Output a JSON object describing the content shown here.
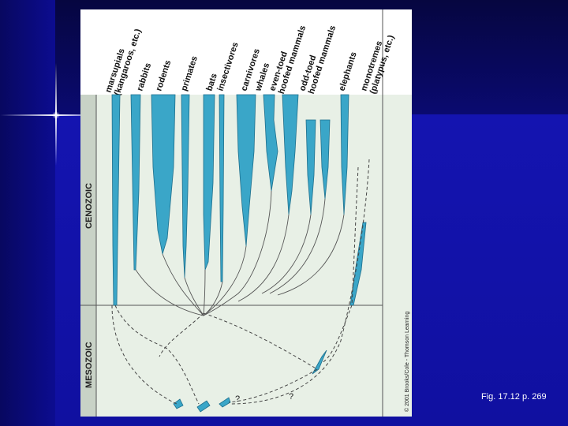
{
  "slide": {
    "caption": "Fig. 17.12 p. 269",
    "colors": {
      "branch": "#3aa6c8",
      "era_bg": "#e8f0e6",
      "slide_bg": "#1010a8"
    }
  },
  "figure": {
    "labels": [
      {
        "id": "marsupials",
        "lines": [
          "marsupials",
          "(kangaroos, etc.)"
        ]
      },
      {
        "id": "rabbits",
        "lines": [
          "rabbits"
        ]
      },
      {
        "id": "rodents",
        "lines": [
          "rodents"
        ]
      },
      {
        "id": "primates",
        "lines": [
          "primates"
        ]
      },
      {
        "id": "bats",
        "lines": [
          "bats"
        ]
      },
      {
        "id": "insectivores",
        "lines": [
          "insectivores"
        ]
      },
      {
        "id": "carnivores",
        "lines": [
          "carnivores"
        ]
      },
      {
        "id": "whales",
        "lines": [
          "whales"
        ]
      },
      {
        "id": "even-toed",
        "lines": [
          "even-toed",
          "hoofed mammals"
        ]
      },
      {
        "id": "odd-toed",
        "lines": [
          "odd-toed",
          "hoofed mammals"
        ]
      },
      {
        "id": "elephants",
        "lines": [
          "elephants"
        ]
      },
      {
        "id": "monotremes",
        "lines": [
          "monotremes",
          "(platypus, etc.)"
        ]
      }
    ],
    "eras": {
      "cenozoic": "CENOZOIC",
      "mesozoic": "MESOZOIC"
    },
    "uncertain_marks": [
      "?",
      "?"
    ],
    "copyright": "© 2001 Brooks/Cole - Thomson Learning"
  }
}
